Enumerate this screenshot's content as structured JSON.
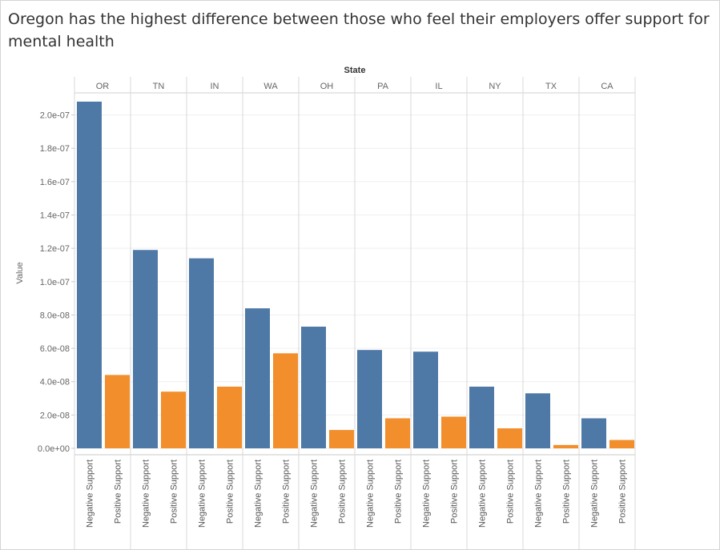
{
  "title": "Oregon has the highest difference between those who feel their employers offer support for mental health",
  "chart_data": {
    "type": "bar",
    "column_header": "State",
    "categories": [
      "OR",
      "TN",
      "IN",
      "WA",
      "OH",
      "PA",
      "IL",
      "NY",
      "TX",
      "CA"
    ],
    "subcategories": [
      "Negative Support",
      "Positive Support"
    ],
    "series": [
      {
        "name": "Negative Support",
        "color": "#4e79a7",
        "values": [
          2.08e-07,
          1.19e-07,
          1.14e-07,
          8.4e-08,
          7.3e-08,
          5.9e-08,
          5.8e-08,
          3.7e-08,
          3.3e-08,
          1.8e-08
        ]
      },
      {
        "name": "Positive Support",
        "color": "#f28e2b",
        "values": [
          4.4e-08,
          3.4e-08,
          3.7e-08,
          5.7e-08,
          1.1e-08,
          1.8e-08,
          1.9e-08,
          1.2e-08,
          2e-09,
          5e-09
        ]
      }
    ],
    "ylabel": "Value",
    "xlabel": "",
    "ylim": [
      0,
      2.1e-07
    ],
    "yticks": [
      0,
      2e-08,
      4e-08,
      6e-08,
      8e-08,
      1e-07,
      1.2e-07,
      1.4e-07,
      1.6e-07,
      1.8e-07,
      2e-07
    ],
    "ytick_labels": [
      "0.0e+00",
      "2.0e-08",
      "4.0e-08",
      "6.0e-08",
      "8.0e-08",
      "1.0e-07",
      "1.2e-07",
      "1.4e-07",
      "1.6e-07",
      "1.8e-07",
      "2.0e-07"
    ],
    "grid": true
  }
}
